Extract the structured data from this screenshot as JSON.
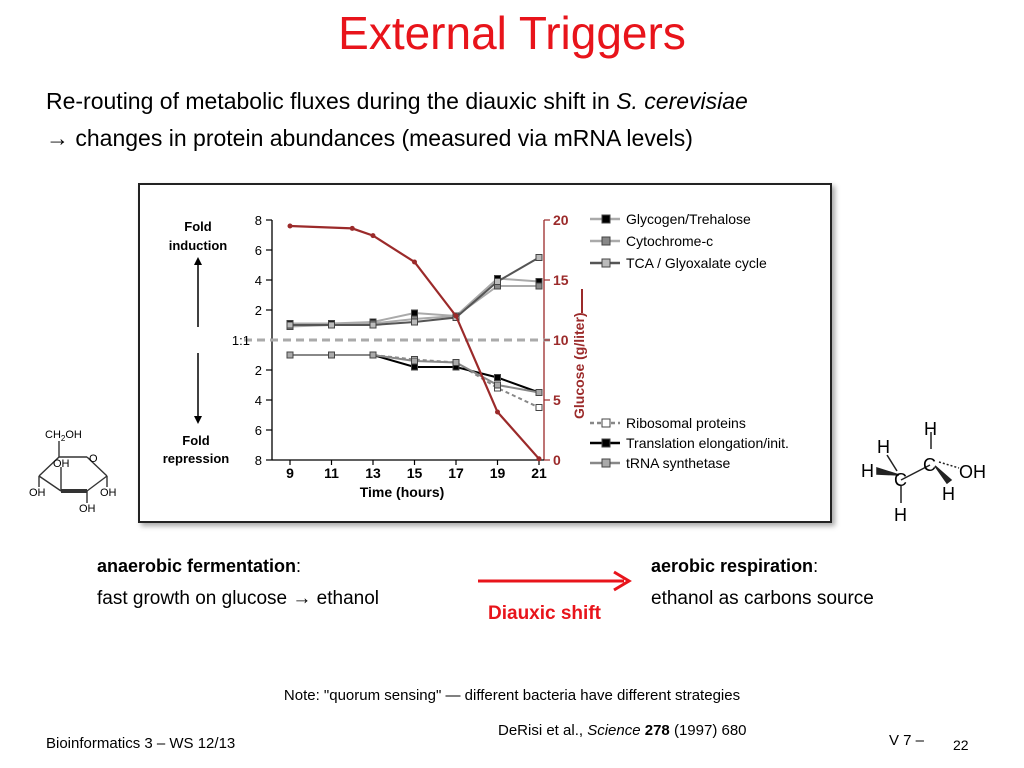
{
  "slide": {
    "title": "External Triggers",
    "line1_prefix": "Re-routing of metabolic fluxes during the diauxic shift in ",
    "line1_species": "S. cerevisiae",
    "line2": "→ changes in protein abundances (measured via mRNA levels)"
  },
  "chart_data": {
    "type": "line",
    "x": [
      9,
      11,
      13,
      15,
      17,
      19,
      21
    ],
    "xlabel": "Time (hours)",
    "x_ticks": [
      "9",
      "11",
      "13",
      "15",
      "17",
      "19",
      "21"
    ],
    "left_axis": {
      "ticks_up": [
        "8",
        "6",
        "4",
        "2"
      ],
      "baseline_label": "1:1",
      "ticks_down": [
        "2",
        "4",
        "6",
        "8"
      ],
      "label_up": [
        "Fold",
        "induction"
      ],
      "label_down": [
        "Fold",
        "repression"
      ],
      "ylim": [
        -8,
        8
      ]
    },
    "right_axis": {
      "ylabel": "Glucose (g/liter)",
      "ticks": [
        "20",
        "15",
        "10",
        "5",
        "0"
      ],
      "ylim": [
        0,
        20
      ],
      "color": "#9b2a2a"
    },
    "glucose": {
      "x": [
        9,
        12,
        13,
        15,
        17,
        19,
        21
      ],
      "values": [
        19.5,
        19.3,
        18.7,
        16.5,
        12.0,
        4.0,
        0.1
      ]
    },
    "series": [
      {
        "name": "Glycogen/Trehalose",
        "values": [
          1.1,
          1.1,
          1.2,
          1.8,
          1.6,
          4.1,
          3.9
        ],
        "color": "#aaaaaa",
        "marker": "#000000",
        "dash": "none"
      },
      {
        "name": "Cytochrome-c",
        "values": [
          0.9,
          1.0,
          1.1,
          1.4,
          1.6,
          3.6,
          3.6
        ],
        "color": "#aaaaaa",
        "marker": "#888888",
        "dash": "none"
      },
      {
        "name": "TCA / Glyoxalate cycle",
        "values": [
          1.0,
          1.0,
          1.0,
          1.2,
          1.5,
          3.9,
          5.5
        ],
        "color": "#555555",
        "marker": "#bbbbbb",
        "dash": "none"
      },
      {
        "name": "Ribosomal proteins",
        "values": [
          -1.0,
          -1.0,
          -1.0,
          -1.3,
          -1.5,
          -3.2,
          -4.5
        ],
        "color": "#888888",
        "marker": "#ffffff",
        "dash": "4,3"
      },
      {
        "name": "Translation elongation/init.",
        "values": [
          -1.0,
          -1.0,
          -1.0,
          -1.8,
          -1.8,
          -2.5,
          -3.5
        ],
        "color": "#000000",
        "marker": "#000000",
        "dash": "none"
      },
      {
        "name": "tRNA synthetase",
        "values": [
          -1.0,
          -1.0,
          -1.0,
          -1.4,
          -1.5,
          -3.0,
          -3.5
        ],
        "color": "#888888",
        "marker": "#aaaaaa",
        "dash": "none"
      }
    ]
  },
  "glucose_molecule": {
    "atoms": {
      "ch2oh": "CH",
      "ch2oh_sub": "2",
      "ch2oh_end": "OH",
      "o": "O",
      "oh": "OH"
    }
  },
  "ethanol_molecule": {
    "atoms": {
      "h": "H",
      "c": "C",
      "oh": "OH"
    }
  },
  "process": {
    "left_title": "anaerobic fermentation",
    "left_desc": "fast growth on glucose → ethanol",
    "right_title": "aerobic respiration",
    "right_desc": "ethanol as carbons source",
    "colon": ":",
    "shift_label": "Diauxic shift",
    "arrow_color": "#e8141b"
  },
  "note": "Note: \"quorum sensing\" — different bacteria have different strategies",
  "citation": {
    "authors": "DeRisi et al., ",
    "journal": "Science",
    "volume": "278",
    "rest": " (1997) 680"
  },
  "footer": {
    "left": "Bioinformatics 3 – WS 12/13",
    "right": "V 7  –",
    "page": "22"
  }
}
